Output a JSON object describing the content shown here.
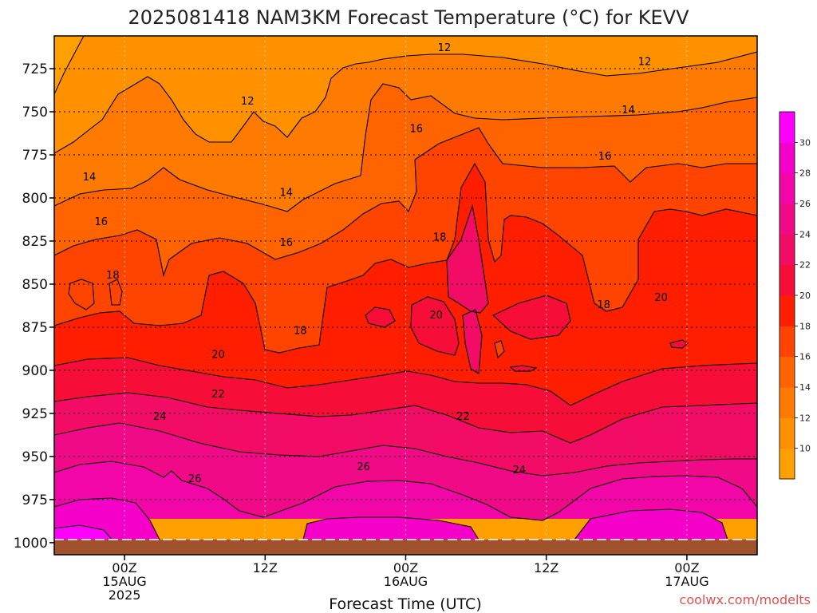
{
  "page": {
    "title": "2025081418 NAM3KM Forecast Temperature (°C) for KEVV",
    "credit": "coolwx.com/modelts"
  },
  "chart_data": {
    "type": "heatmap",
    "title": "2025081418 NAM3KM Forecast Temperature (°C) for KEVV",
    "xlabel": "Forecast Time (UTC)",
    "ylabel": "",
    "x_range_hours": [
      -6,
      54
    ],
    "x_ticks": [
      {
        "hour": 0,
        "lines": [
          "00Z",
          "15AUG",
          "2025"
        ]
      },
      {
        "hour": 12,
        "lines": [
          "12Z"
        ]
      },
      {
        "hour": 24,
        "lines": [
          "00Z",
          "16AUG"
        ]
      },
      {
        "hour": 36,
        "lines": [
          "12Z"
        ]
      },
      {
        "hour": 48,
        "lines": [
          "00Z",
          "17AUG"
        ]
      }
    ],
    "y_axis": {
      "units": "hPa",
      "reversed": true,
      "range": [
        706,
        1007
      ],
      "ticks": [
        725,
        750,
        775,
        800,
        825,
        850,
        875,
        900,
        925,
        950,
        975,
        1000
      ]
    },
    "ground_level_hpa": 1000,
    "grid": true,
    "colorbar": {
      "position": "right",
      "ticks": [
        10,
        12,
        14,
        16,
        18,
        20,
        22,
        24,
        26,
        28,
        30
      ],
      "colors": [
        "#ffa000",
        "#ff9000",
        "#ff7a00",
        "#ff6400",
        "#ff4400",
        "#ff1e00",
        "#f70e38",
        "#f20c66",
        "#f00a88",
        "#f206a8",
        "#f400c8",
        "#ff00ff"
      ]
    },
    "contour_labels": [
      {
        "value": "12",
        "hour": 10.5,
        "hpa": 744
      },
      {
        "value": "12",
        "hour": 27.3,
        "hpa": 713
      },
      {
        "value": "12",
        "hour": 44.4,
        "hpa": 721
      },
      {
        "value": "14",
        "hour": -3.0,
        "hpa": 788
      },
      {
        "value": "14",
        "hour": 13.8,
        "hpa": 797
      },
      {
        "value": "14",
        "hour": 43.0,
        "hpa": 749
      },
      {
        "value": "16",
        "hour": -2.0,
        "hpa": 814
      },
      {
        "value": "16",
        "hour": 13.8,
        "hpa": 826
      },
      {
        "value": "16",
        "hour": 24.9,
        "hpa": 760
      },
      {
        "value": "16",
        "hour": 41.0,
        "hpa": 776
      },
      {
        "value": "18",
        "hour": -1.0,
        "hpa": 845
      },
      {
        "value": "18",
        "hour": 15.0,
        "hpa": 877
      },
      {
        "value": "18",
        "hour": 26.9,
        "hpa": 823
      },
      {
        "value": "18",
        "hour": 40.9,
        "hpa": 862
      },
      {
        "value": "20",
        "hour": 8.0,
        "hpa": 891
      },
      {
        "value": "20",
        "hour": 26.6,
        "hpa": 868
      },
      {
        "value": "20",
        "hour": 45.8,
        "hpa": 858
      },
      {
        "value": "22",
        "hour": 8.0,
        "hpa": 914
      },
      {
        "value": "22",
        "hour": 28.9,
        "hpa": 927
      },
      {
        "value": "24",
        "hour": 3.0,
        "hpa": 927
      },
      {
        "value": "24",
        "hour": 33.7,
        "hpa": 958
      },
      {
        "value": "26",
        "hour": 6.0,
        "hpa": 963
      },
      {
        "value": "26",
        "hour": 20.4,
        "hpa": 956
      }
    ]
  }
}
